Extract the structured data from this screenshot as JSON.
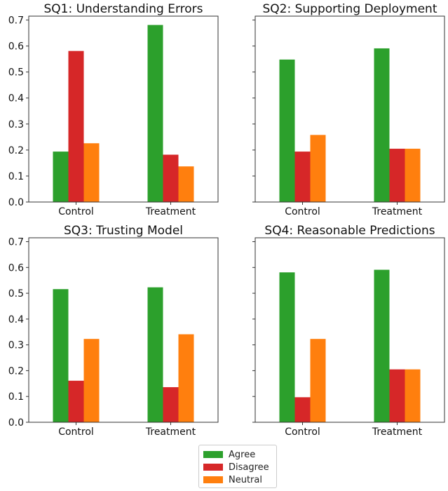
{
  "colors": {
    "Agree": "#2ca02c",
    "Disagree": "#d62728",
    "Neutral": "#ff7f0e"
  },
  "legend": {
    "items": [
      "Agree",
      "Disagree",
      "Neutral"
    ]
  },
  "chart_data": [
    {
      "type": "bar",
      "title": "SQ1: Understanding Errors",
      "categories": [
        "Control",
        "Treatment"
      ],
      "series": [
        {
          "name": "Agree",
          "values": [
            0.194,
            0.681
          ]
        },
        {
          "name": "Disagree",
          "values": [
            0.581,
            0.182
          ]
        },
        {
          "name": "Neutral",
          "values": [
            0.226,
            0.137
          ]
        }
      ],
      "yticks": [
        "0.0",
        "0.1",
        "0.2",
        "0.3",
        "0.4",
        "0.5",
        "0.6",
        "0.7"
      ],
      "ylim": [
        0,
        0.715
      ],
      "show_ytick_labels": true
    },
    {
      "type": "bar",
      "title": "SQ2: Supporting Deployment",
      "categories": [
        "Control",
        "Treatment"
      ],
      "series": [
        {
          "name": "Agree",
          "values": [
            0.548,
            0.591
          ]
        },
        {
          "name": "Disagree",
          "values": [
            0.194,
            0.205
          ]
        },
        {
          "name": "Neutral",
          "values": [
            0.258,
            0.205
          ]
        }
      ],
      "yticks": [
        "0.0",
        "0.1",
        "0.2",
        "0.3",
        "0.4",
        "0.5",
        "0.6",
        "0.7"
      ],
      "ylim": [
        0,
        0.715
      ],
      "show_ytick_labels": false
    },
    {
      "type": "bar",
      "title": "SQ3: Trusting Model",
      "categories": [
        "Control",
        "Treatment"
      ],
      "series": [
        {
          "name": "Agree",
          "values": [
            0.516,
            0.523
          ]
        },
        {
          "name": "Disagree",
          "values": [
            0.161,
            0.136
          ]
        },
        {
          "name": "Neutral",
          "values": [
            0.323,
            0.341
          ]
        }
      ],
      "yticks": [
        "0.0",
        "0.1",
        "0.2",
        "0.3",
        "0.4",
        "0.5",
        "0.6",
        "0.7"
      ],
      "ylim": [
        0,
        0.715
      ],
      "show_ytick_labels": true
    },
    {
      "type": "bar",
      "title": "SQ4: Reasonable Predictions",
      "categories": [
        "Control",
        "Treatment"
      ],
      "series": [
        {
          "name": "Agree",
          "values": [
            0.581,
            0.591
          ]
        },
        {
          "name": "Disagree",
          "values": [
            0.097,
            0.205
          ]
        },
        {
          "name": "Neutral",
          "values": [
            0.323,
            0.205
          ]
        }
      ],
      "yticks": [
        "0.0",
        "0.1",
        "0.2",
        "0.3",
        "0.4",
        "0.5",
        "0.6",
        "0.7"
      ],
      "ylim": [
        0,
        0.715
      ],
      "show_ytick_labels": false
    }
  ]
}
